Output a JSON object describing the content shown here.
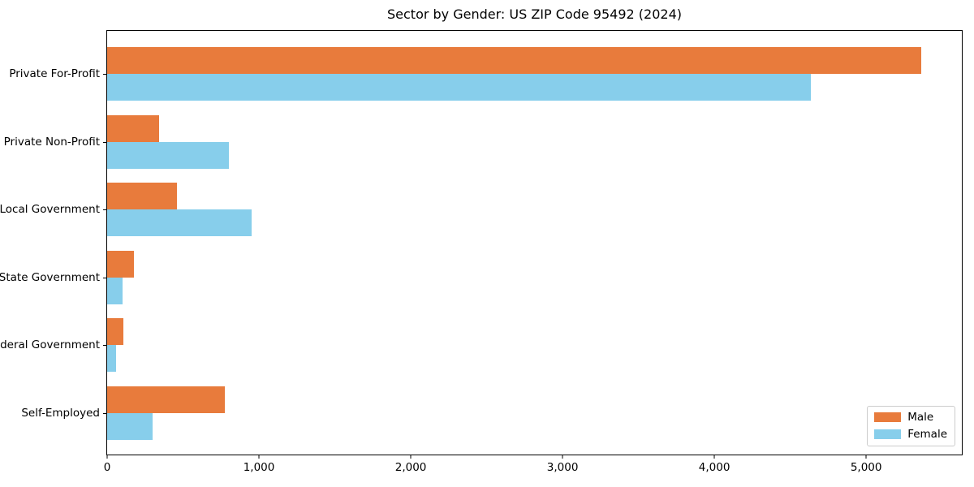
{
  "chart_data": {
    "type": "bar",
    "orientation": "horizontal",
    "title": "Sector by Gender: US ZIP Code 95492 (2024)",
    "xlabel": "",
    "ylabel": "",
    "categories": [
      "Private For-Profit",
      "Private Non-Profit",
      "Local Government",
      "State Government",
      "Federal Government",
      "Self-Employed"
    ],
    "series": [
      {
        "name": "Male",
        "color": "#e87b3c",
        "values": [
          5360,
          343,
          460,
          176,
          105,
          777
        ]
      },
      {
        "name": "Female",
        "color": "#87ceeb",
        "values": [
          4636,
          804,
          951,
          101,
          57,
          297
        ]
      }
    ],
    "xlim": [
      0,
      5630
    ],
    "x_ticks": [
      0,
      1000,
      2000,
      3000,
      4000,
      5000
    ],
    "x_tick_labels": [
      "0",
      "1,000",
      "2,000",
      "3,000",
      "4,000",
      "5,000"
    ],
    "grid": false,
    "legend_position": "lower right"
  },
  "colors": {
    "male": "#e87b3c",
    "female": "#87ceeb",
    "axis": "#000000",
    "legend_border": "#cccccc",
    "background": "#ffffff"
  }
}
